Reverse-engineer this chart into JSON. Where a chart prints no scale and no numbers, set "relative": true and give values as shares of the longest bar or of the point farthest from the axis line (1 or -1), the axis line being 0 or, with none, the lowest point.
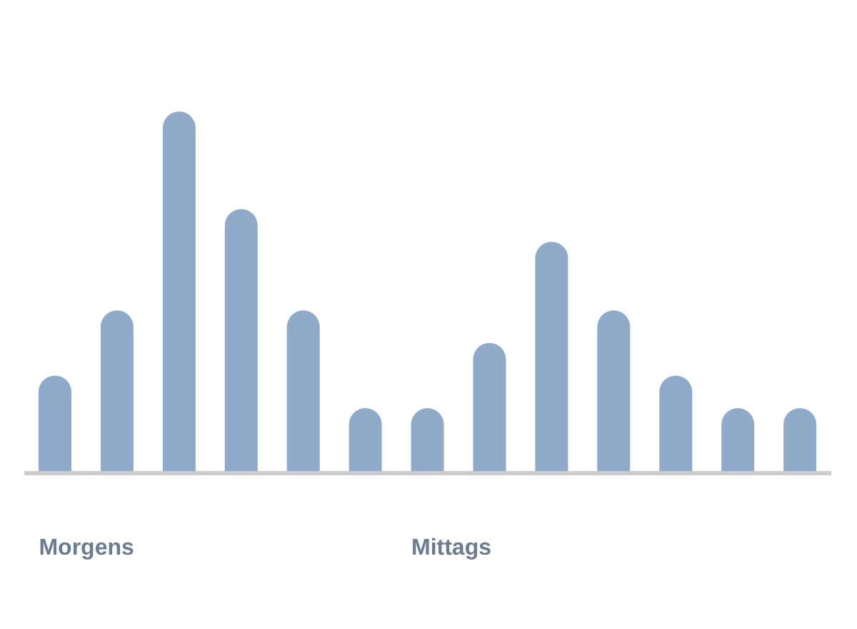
{
  "chart_data": {
    "type": "bar",
    "relative": true,
    "categories": [
      "Morgens",
      null,
      null,
      null,
      null,
      null,
      "Mittags",
      null,
      null,
      null,
      null,
      null,
      null
    ],
    "values": [
      0.27,
      0.45,
      1,
      0.73,
      0.45,
      0.18,
      0.18,
      0.36,
      0.64,
      0.45,
      0.27,
      0.18,
      0.18
    ],
    "color": "#8fabc9"
  }
}
